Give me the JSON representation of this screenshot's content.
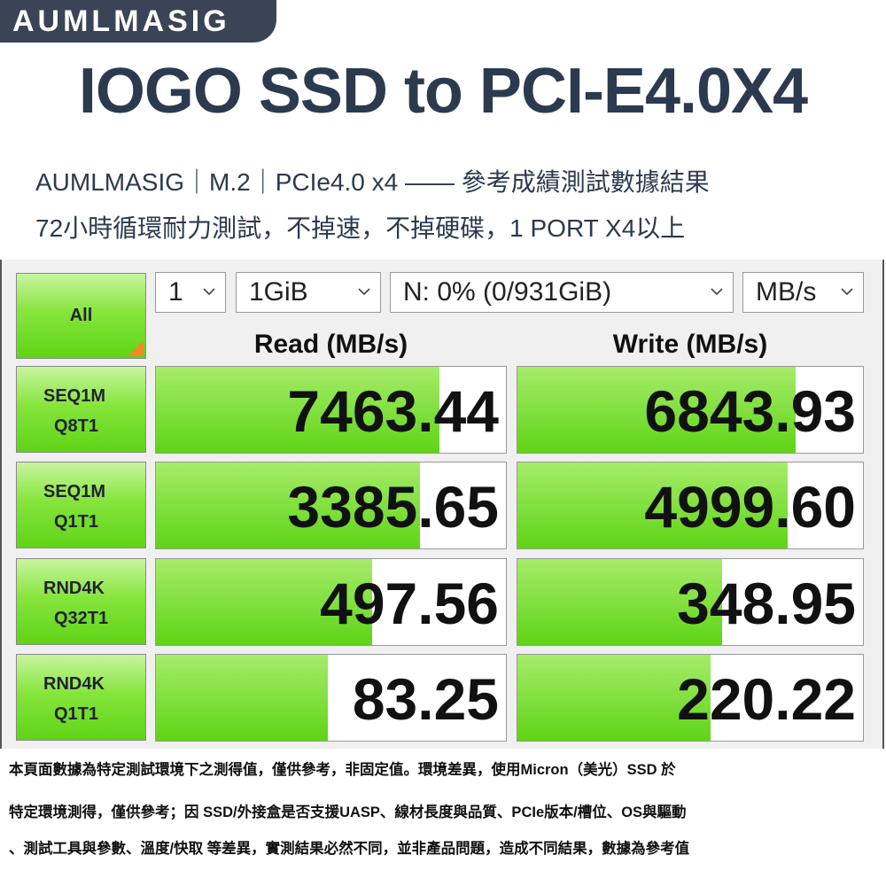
{
  "brand": "AUMLMASIG",
  "title": "IOGO SSD to PCI-E4.0X4",
  "subtitle": [
    "AUMLMASIG｜M.2｜PCIe4.0 x4 —— 參考成績測試數據結果",
    "72小時循環耐力測試，不掉速，不掉硬碟，1 PORT X4以上"
  ],
  "benchmark": {
    "all_button": "All",
    "selectors": [
      "1",
      "1GiB",
      "N: 0% (0/931GiB)",
      "MB/s"
    ],
    "headers": [
      "Read (MB/s)",
      "Write (MB/s)"
    ],
    "rows": [
      {
        "label": [
          "SEQ1M",
          "Q8T1"
        ],
        "values": [
          7463.44,
          6843.93
        ],
        "value_labels": [
          "7463.44",
          "6843.93"
        ]
      },
      {
        "label": [
          "SEQ1M",
          "Q1T1"
        ],
        "values": [
          3385.65,
          4999.6
        ],
        "value_labels": [
          "3385.65",
          "4999.60"
        ]
      },
      {
        "label": [
          "RND4K",
          "Q32T1"
        ],
        "values": [
          497.56,
          348.95
        ],
        "value_labels": [
          "497.56",
          "348.95"
        ]
      },
      {
        "label": [
          "RND4K",
          "Q1T1"
        ],
        "values": [
          83.25,
          220.22
        ],
        "value_labels": [
          "83.25",
          "220.22"
        ]
      }
    ]
  },
  "footer": [
    "本頁面數據為特定測試環境下之測得值，僅供參考，非固定值。環境差異，使用Micron（美光）SSD 於",
    "特定環境測得，僅供參考；因 SSD/外接盒是否支援UASP、線材長度與品質、PCIe版本/槽位、OS與驅動",
    "、測試工具與參數、溫度/快取 等差異，實測結果必然不同，並非產品問題，造成不同結果，數據為參考值"
  ]
}
